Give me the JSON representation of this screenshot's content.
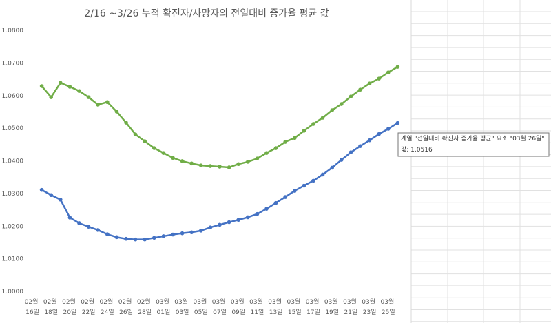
{
  "chart_data": {
    "type": "line",
    "title": "2/16 ~3/26 누적 확진자/사망자의 전일대비 증가율 평균 값",
    "categories": [
      "02월 16일",
      null,
      "02월 18일",
      null,
      "02월 20일",
      null,
      "02월 22일",
      null,
      "02월 24일",
      null,
      "02월 26일",
      null,
      "02월 28일",
      null,
      "03월 01일",
      null,
      "03월 03일",
      null,
      "03월 05일",
      null,
      "03월 07일",
      null,
      "03월 09일",
      null,
      "03월 11일",
      null,
      "03월 13일",
      null,
      "03월 15일",
      null,
      "03월 17일",
      null,
      "03월 19일",
      null,
      "03월 21일",
      null,
      "03월 23일",
      null,
      "03월 25일",
      null
    ],
    "series": [
      {
        "color": "#70ad47",
        "values": [
          null,
          1.0629,
          1.0595,
          1.0639,
          1.0627,
          1.0614,
          1.0595,
          1.0572,
          1.058,
          1.0551,
          1.0517,
          1.0481,
          1.046,
          1.0439,
          1.0424,
          1.0409,
          1.0399,
          1.0392,
          1.0386,
          1.0384,
          1.0382,
          1.038,
          1.039,
          1.0397,
          1.0407,
          1.0424,
          1.0439,
          1.0458,
          1.047,
          1.0492,
          1.0513,
          1.0532,
          1.0555,
          1.0574,
          1.0597,
          1.0618,
          1.0637,
          1.0652,
          1.0671,
          1.0688
        ]
      },
      {
        "name": "전일대비 확진자 증가율 평균",
        "color": "#4472c4",
        "values": [
          null,
          1.0311,
          1.0295,
          1.0281,
          1.0226,
          1.0209,
          1.0198,
          1.0188,
          1.0175,
          1.0166,
          1.0161,
          1.0159,
          1.0159,
          1.0164,
          1.0169,
          1.0174,
          1.0178,
          1.0181,
          1.0186,
          1.0196,
          1.0204,
          1.0212,
          1.0219,
          1.0227,
          1.0237,
          1.0253,
          1.0271,
          1.0289,
          1.0308,
          1.0324,
          1.0339,
          1.0358,
          1.0379,
          1.0403,
          1.0426,
          1.0445,
          1.0463,
          1.0482,
          1.0498,
          1.0516
        ]
      }
    ],
    "ylim": [
      1.0,
      1.08
    ],
    "yticks": [
      {
        "value": 1.0,
        "label": "1.0000"
      },
      {
        "value": 1.01,
        "label": "1.0100"
      },
      {
        "value": 1.02,
        "label": "1.0200"
      },
      {
        "value": 1.03,
        "label": "1.0300"
      },
      {
        "value": 1.04,
        "label": "1.0400"
      },
      {
        "value": 1.05,
        "label": "1.0500"
      },
      {
        "value": 1.06,
        "label": "1.0600"
      },
      {
        "value": 1.07,
        "label": "1.0700"
      },
      {
        "value": 1.08,
        "label": "1.0800"
      }
    ],
    "grid": false,
    "tooltip": {
      "line1": "계열 \"전일대비 확진자 증가율 평균\" 요소 \"03월 26일\"",
      "line2": "값: 1.0516"
    }
  }
}
